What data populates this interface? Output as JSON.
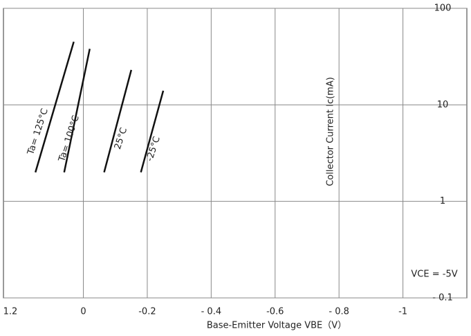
{
  "chart_data": {
    "type": "line",
    "x_label": "Base-Emitter Voltage  VBE（V）",
    "y_label": "Collector Current  Ic(mA)",
    "annotations": [
      "Ta= 125°C",
      "Ta= 100°C",
      "25°C",
      "-25°C",
      "VCE = -5V",
      "1.2"
    ],
    "xlim": [
      0.25,
      -1.2
    ],
    "xticks": [
      0,
      -0.2,
      {
        "value": -0.4,
        "label": "- 0.4"
      },
      -0.6,
      {
        "value": -0.8,
        "label": "- 0.8"
      },
      -1
    ],
    "ylim": [
      0.1,
      100
    ],
    "yticks": [
      {
        "value": 0.1,
        "label": "- 0.1"
      },
      1,
      10,
      100
    ],
    "log_y": true,
    "grid": true,
    "series": [
      {
        "name": "Ta= 125°C",
        "color": "#111111",
        "x": [
          0.15,
          0.03
        ],
        "values": [
          2,
          45
        ]
      },
      {
        "name": "Ta= 100°C",
        "color": "#111111",
        "x": [
          0.06,
          -0.02
        ],
        "values": [
          2,
          38
        ]
      },
      {
        "name": "25°C",
        "color": "#111111",
        "x": [
          -0.065,
          -0.15
        ],
        "values": [
          2,
          23
        ]
      },
      {
        "name": "-25°C",
        "color": "#111111",
        "x": [
          -0.18,
          -0.25
        ],
        "values": [
          2,
          14
        ]
      }
    ]
  }
}
